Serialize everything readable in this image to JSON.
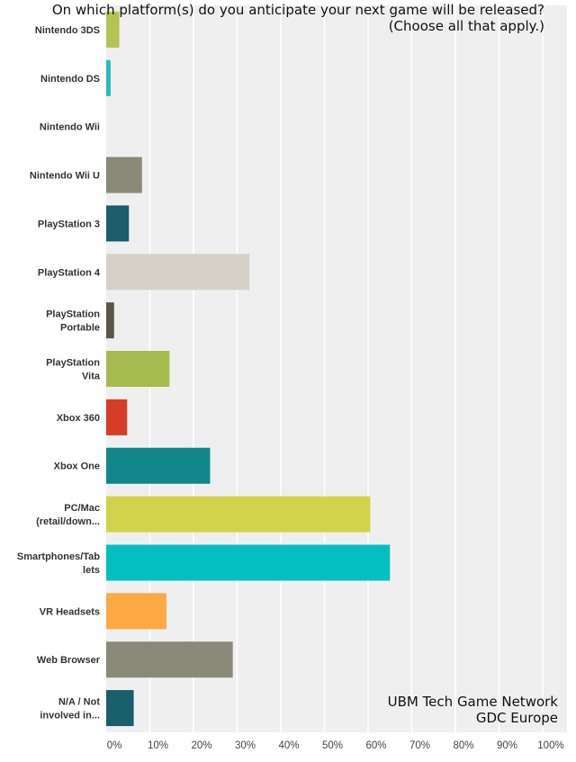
{
  "chart_data": {
    "type": "bar",
    "orientation": "horizontal",
    "title": "On which platform(s) do you anticipate your next game will be released?",
    "subtitle": "(Choose all that apply.)",
    "source_lines": [
      "UBM Tech Game Network",
      "GDC Europe"
    ],
    "categories": [
      [
        "Nintendo 3DS"
      ],
      [
        "Nintendo DS"
      ],
      [
        "Nintendo Wii"
      ],
      [
        "Nintendo Wii U"
      ],
      [
        "PlayStation 3"
      ],
      [
        "PlayStation 4"
      ],
      [
        "PlayStation",
        "Portable"
      ],
      [
        "PlayStation",
        "Vita"
      ],
      [
        "Xbox 360"
      ],
      [
        "Xbox One"
      ],
      [
        "PC/Mac",
        "(retail/down..."
      ],
      [
        "Smartphones/Tab",
        "lets"
      ],
      [
        "VR Headsets"
      ],
      [
        "Web Browser"
      ],
      [
        "N/A / Not",
        "involved in..."
      ]
    ],
    "values": [
      3.0,
      1.0,
      0,
      8.2,
      5.2,
      32.8,
      1.8,
      14.5,
      4.8,
      23.8,
      60.5,
      65.0,
      13.8,
      29.0,
      6.3
    ],
    "colors": [
      "#b5c254",
      "#1fbfbf",
      "#cccccc",
      "#8b897a",
      "#1a5d6b",
      "#d6d1c6",
      "#5b5549",
      "#a6bb4e",
      "#d63c26",
      "#11878b",
      "#d1d44b",
      "#03c0c0",
      "#fea944",
      "#8b897a",
      "#1a5d6b"
    ],
    "xticks": [
      "0%",
      "10%",
      "20%",
      "30%",
      "40%",
      "50%",
      "60%",
      "70%",
      "80%",
      "90%",
      "100%"
    ],
    "xlim": [
      0,
      100
    ],
    "grid": true,
    "background": "#efefef",
    "gridline_color": "#ffffff"
  }
}
